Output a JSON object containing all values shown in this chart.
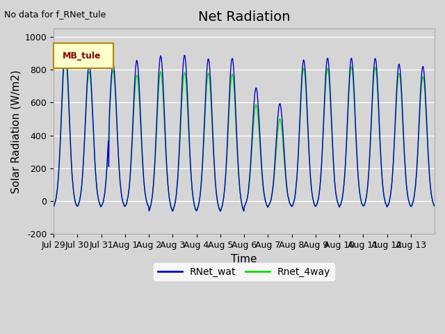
{
  "title": "Net Radiation",
  "xlabel": "Time",
  "ylabel": "Solar Radiation (W/m2)",
  "ylim": [
    -200,
    1050
  ],
  "line1_color": "#0000cc",
  "line2_color": "#00dd00",
  "line1_label": "RNet_wat",
  "line2_label": "Rnet_4way",
  "note_text": "No data for f_RNet_tule",
  "legend_label": "MB_tule",
  "xtick_labels": [
    "Jul 29",
    "Jul 30",
    "Jul 31",
    "Aug 1",
    "Aug 2",
    "Aug 3",
    "Aug 4",
    "Aug 5",
    "Aug 6",
    "Aug 7",
    "Aug 8",
    "Aug 9",
    "Aug 10",
    "Aug 11",
    "Aug 12",
    "Aug 13"
  ],
  "title_fontsize": 14,
  "label_fontsize": 11,
  "tick_fontsize": 9,
  "n_days": 16,
  "points_per_day": 48,
  "day_peaks_wat": [
    940,
    835,
    840,
    855,
    885,
    890,
    865,
    870,
    690,
    595,
    860,
    870,
    870,
    870,
    835,
    820
  ],
  "day_peaks_4way": [
    880,
    790,
    795,
    770,
    790,
    785,
    780,
    775,
    590,
    500,
    810,
    810,
    820,
    815,
    780,
    760
  ]
}
